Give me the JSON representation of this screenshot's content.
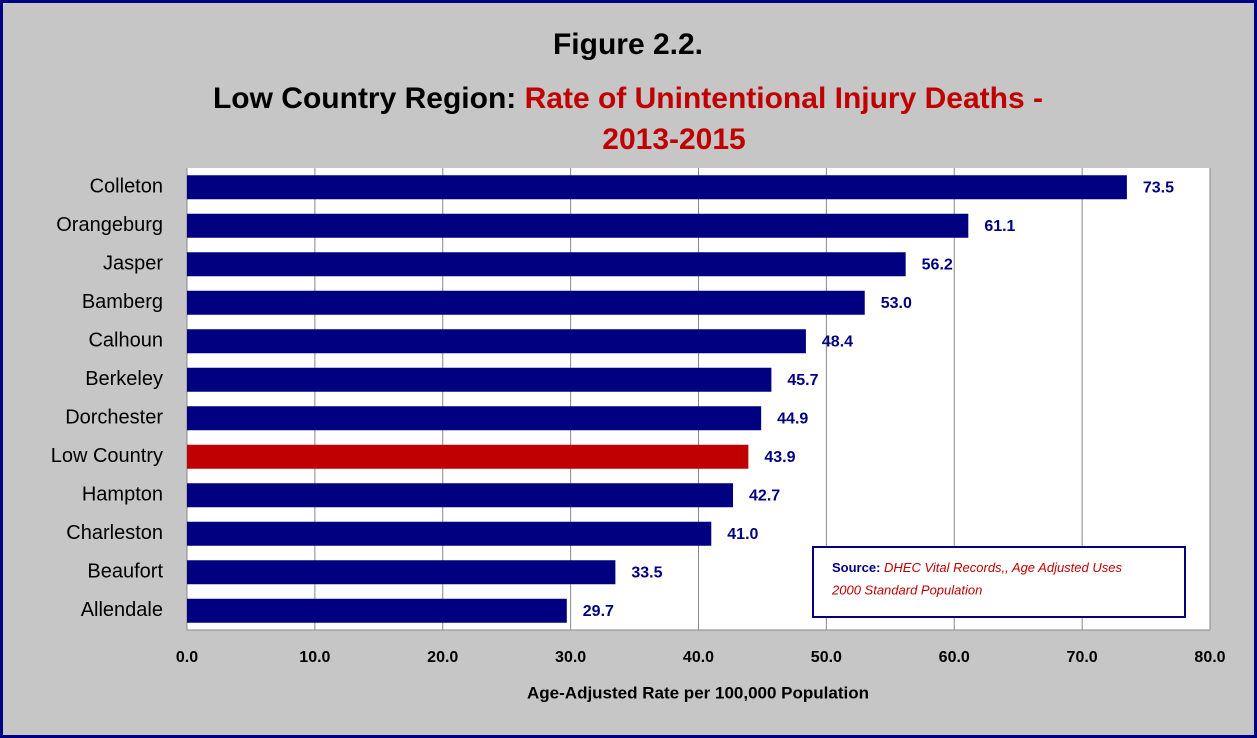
{
  "chart_data": {
    "type": "bar",
    "orientation": "horizontal",
    "title": "Figure 2.2.",
    "subtitle": {
      "prefix": "Low Country Region:",
      "highlight": [
        "Rate of Unintentional Injury Deaths -",
        "2013-2015"
      ]
    },
    "xlabel": "Age-Adjusted Rate per 100,000 Population",
    "categories": [
      "Colleton",
      "Orangeburg",
      "Jasper",
      "Bamberg",
      "Calhoun",
      "Berkeley",
      "Dorchester",
      "Low Country",
      "Hampton",
      "Charleston",
      "Beaufort",
      "Allendale"
    ],
    "values": [
      73.5,
      61.1,
      56.2,
      53.0,
      48.4,
      45.7,
      44.9,
      43.9,
      42.7,
      41.0,
      33.5,
      29.7
    ],
    "value_labels": [
      "73.5",
      "61.1",
      "56.2",
      "53.0",
      "48.4",
      "45.7",
      "44.9",
      "43.9",
      "42.7",
      "41.0",
      "33.5",
      "29.7"
    ],
    "colors": [
      "#000080",
      "#000080",
      "#000080",
      "#000080",
      "#000080",
      "#000080",
      "#000080",
      "#c00000",
      "#000080",
      "#000080",
      "#000080",
      "#000080"
    ],
    "xlim": [
      0,
      80
    ],
    "xticks": [
      {
        "value": 0,
        "label": "0.0"
      },
      {
        "value": 10,
        "label": "10.0"
      },
      {
        "value": 20,
        "label": "20.0"
      },
      {
        "value": 30,
        "label": "30.0"
      },
      {
        "value": 40,
        "label": "40.0"
      },
      {
        "value": 50,
        "label": "50.0"
      },
      {
        "value": 60,
        "label": "60.0"
      },
      {
        "value": 70,
        "label": "70.0"
      },
      {
        "value": 80,
        "label": "80.0"
      }
    ],
    "grid": true,
    "source": {
      "label": "Source:",
      "text": [
        "DHEC Vital Records,, Age Adjusted Uses",
        "2000 Standard Population"
      ]
    }
  }
}
